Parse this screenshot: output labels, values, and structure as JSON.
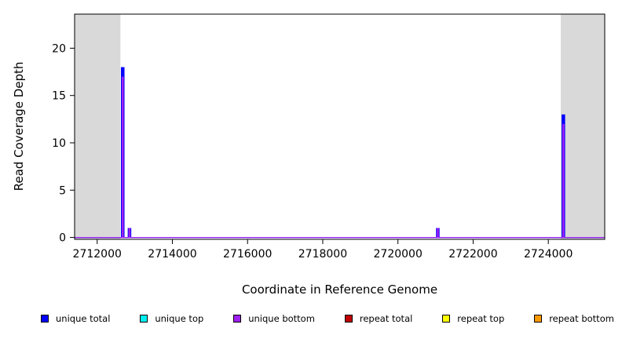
{
  "chart_data": {
    "type": "line",
    "title": "",
    "xlabel": "Coordinate in Reference Genome",
    "ylabel": "Read Coverage Depth",
    "xlim": [
      2711400,
      2725500
    ],
    "ylim": [
      -0.2,
      23.6
    ],
    "x_ticks": [
      2712000,
      2714000,
      2716000,
      2718000,
      2720000,
      2722000,
      2724000
    ],
    "y_ticks": [
      0,
      5,
      10,
      15,
      20
    ],
    "grid": false,
    "legend_position": "bottom",
    "shade_color": "#d9d9d9",
    "shaded_regions": [
      {
        "x_start": 2711400,
        "x_end": 2712620
      },
      {
        "x_start": 2724330,
        "x_end": 2725500
      }
    ],
    "series": [
      {
        "name": "unique total",
        "color": "#0000ff",
        "baseline": 0,
        "spikes": [
          {
            "x": 2712680,
            "depth": 18
          },
          {
            "x": 2712860,
            "depth": 1
          },
          {
            "x": 2721060,
            "depth": 1
          },
          {
            "x": 2724400,
            "depth": 13
          }
        ]
      },
      {
        "name": "unique bottom",
        "color": "#a020f0",
        "baseline": 0,
        "spikes": [
          {
            "x": 2712680,
            "depth": 17
          },
          {
            "x": 2712860,
            "depth": 1
          },
          {
            "x": 2721060,
            "depth": 1
          },
          {
            "x": 2724400,
            "depth": 12
          }
        ]
      }
    ],
    "legend": [
      {
        "label": "unique total",
        "color": "#0000ff"
      },
      {
        "label": "unique top",
        "color": "#00eeee"
      },
      {
        "label": "unique bottom",
        "color": "#a020f0"
      },
      {
        "label": "repeat total",
        "color": "#c00000"
      },
      {
        "label": "repeat top",
        "color": "#ffff00"
      },
      {
        "label": "repeat bottom",
        "color": "#ff9900"
      }
    ]
  }
}
